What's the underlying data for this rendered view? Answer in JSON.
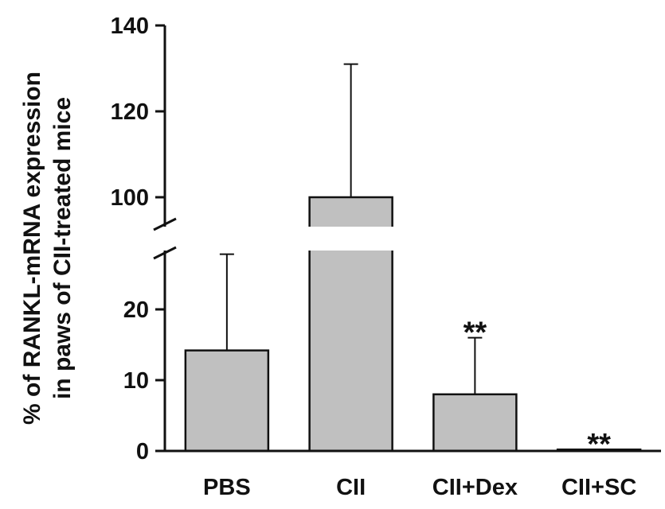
{
  "chart_data": {
    "type": "bar",
    "title": "",
    "xlabel": "",
    "ylabel_lines": [
      "% of RANKL-mRNA expression",
      "in paws of CII-treated mice"
    ],
    "categories": [
      "PBS",
      "CII",
      "CII+Dex",
      "CII+SC"
    ],
    "values": [
      14.2,
      100,
      8,
      0.2
    ],
    "errors": [
      13.6,
      31,
      8,
      0
    ],
    "annotations": [
      "**",
      "",
      "**",
      "**"
    ],
    "axis_break": {
      "lower_range": [
        0,
        30
      ],
      "upper_range": [
        90,
        140
      ]
    },
    "yticks_lower": [
      0,
      10,
      20
    ],
    "yticks_upper": [
      100,
      120,
      140
    ],
    "bar_color": "#c0c0c0",
    "grid": false,
    "legend": "none"
  }
}
